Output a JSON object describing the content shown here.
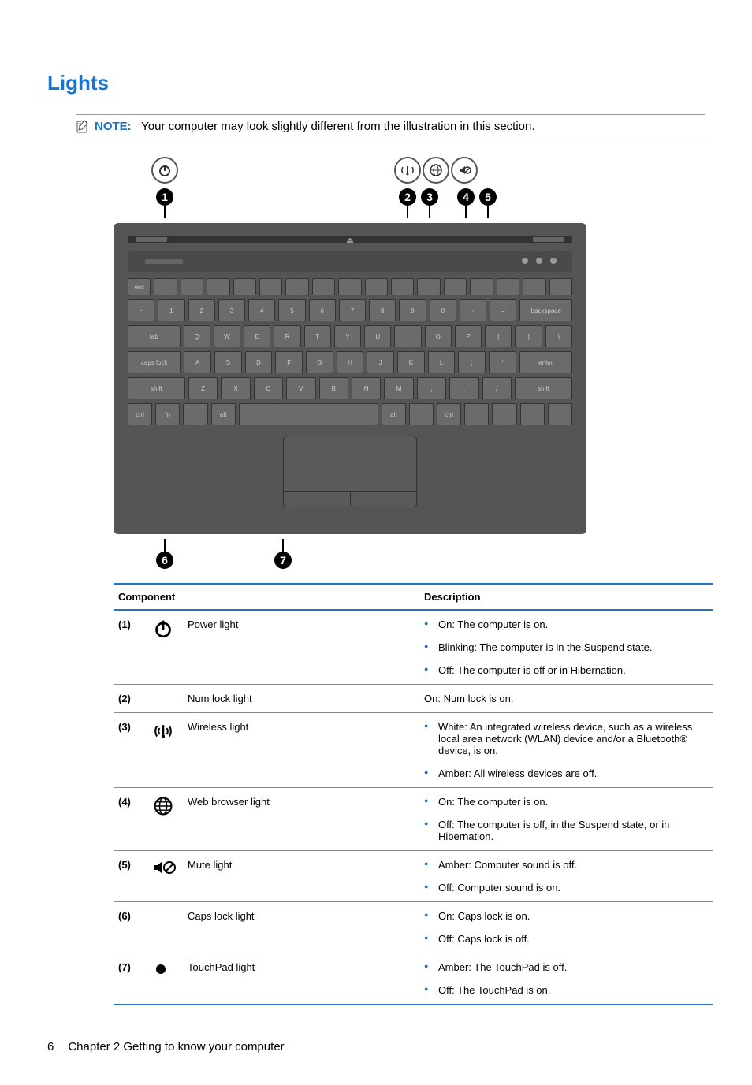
{
  "colors": {
    "accent": "#1a73cc",
    "border_gray": "#888888",
    "text": "#000000",
    "bullet": "#1a73cc"
  },
  "heading": "Lights",
  "note": {
    "label": "NOTE:",
    "text": "Your computer may look slightly different from the illustration in this section."
  },
  "callouts": {
    "c1": "1",
    "c2": "2",
    "c3": "3",
    "c4": "4",
    "c5": "5",
    "c6": "6",
    "c7": "7"
  },
  "table": {
    "headers": {
      "component": "Component",
      "description": "Description"
    },
    "rows": [
      {
        "num": "(1)",
        "icon": "power-icon",
        "name": "Power light",
        "desc": [
          "On: The computer is on.",
          "Blinking: The computer is in the Suspend state.",
          "Off: The computer is off or in Hibernation."
        ]
      },
      {
        "num": "(2)",
        "icon": "",
        "name": "Num lock light",
        "desc_plain": "On: Num lock is on."
      },
      {
        "num": "(3)",
        "icon": "wireless-icon",
        "name": "Wireless light",
        "desc": [
          "White: An integrated wireless device, such as a wireless local area network (WLAN) device and/or a Bluetooth® device, is on.",
          "Amber: All wireless devices are off."
        ]
      },
      {
        "num": "(4)",
        "icon": "globe-icon",
        "name": "Web browser light",
        "desc": [
          "On: The computer is on.",
          "Off: The computer is off, in the Suspend state, or in Hibernation."
        ]
      },
      {
        "num": "(5)",
        "icon": "mute-icon",
        "name": "Mute light",
        "desc": [
          "Amber: Computer sound is off.",
          "Off: Computer sound is on."
        ]
      },
      {
        "num": "(6)",
        "icon": "",
        "name": "Caps lock light",
        "desc": [
          "On: Caps lock is on.",
          "Off: Caps lock is off."
        ]
      },
      {
        "num": "(7)",
        "icon": "touchpad-icon",
        "name": "TouchPad light",
        "desc": [
          "Amber: The TouchPad is off.",
          "Off: The TouchPad is on."
        ]
      }
    ]
  },
  "footer": {
    "page_number": "6",
    "chapter": "Chapter 2   Getting to know your computer"
  },
  "keyboard": {
    "row1": [
      "esc",
      "",
      "",
      "",
      "",
      "",
      "",
      "",
      "",
      "",
      "",
      "",
      "",
      "",
      "",
      "",
      ""
    ],
    "row2": [
      "~",
      "1",
      "2",
      "3",
      "4",
      "5",
      "6",
      "7",
      "8",
      "9",
      "0",
      "-",
      "=",
      "backspace"
    ],
    "row3": [
      "tab",
      "Q",
      "W",
      "E",
      "R",
      "T",
      "Y",
      "U",
      "I",
      "O",
      "P",
      "[",
      "]",
      "\\"
    ],
    "row4": [
      "caps lock",
      "A",
      "S",
      "D",
      "F",
      "G",
      "H",
      "J",
      "K",
      "L",
      ";",
      "'",
      "enter"
    ],
    "row5": [
      "shift",
      "Z",
      "X",
      "C",
      "V",
      "B",
      "N",
      "M",
      ",",
      ".",
      "/",
      "shift"
    ],
    "row6": [
      "ctrl",
      "fn",
      "",
      "alt",
      "",
      "alt",
      "",
      "ctrl",
      "",
      "",
      "",
      ""
    ]
  }
}
